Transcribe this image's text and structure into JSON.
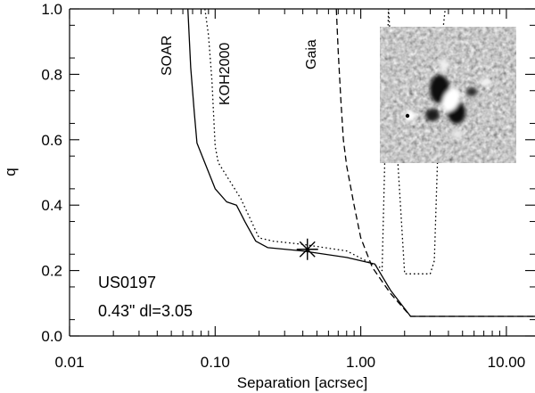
{
  "chart_data": {
    "type": "line",
    "xlabel": "Separation [acrsec]",
    "ylabel": "q",
    "xscale": "log",
    "xlim": [
      0.01,
      20
    ],
    "ylim": [
      0.0,
      1.0
    ],
    "x_ticks": [
      {
        "value": 0.01,
        "label": "0.01"
      },
      {
        "value": 0.1,
        "label": "0.10"
      },
      {
        "value": 1.0,
        "label": "1.00"
      },
      {
        "value": 10.0,
        "label": "10.00"
      }
    ],
    "y_ticks": [
      {
        "value": 0.0,
        "label": "0.0"
      },
      {
        "value": 0.2,
        "label": "0.2"
      },
      {
        "value": 0.4,
        "label": "0.4"
      },
      {
        "value": 0.6,
        "label": "0.6"
      },
      {
        "value": 0.8,
        "label": "0.8"
      },
      {
        "value": 1.0,
        "label": "1.0"
      }
    ],
    "series": [
      {
        "name": "SOAR",
        "style": "solid",
        "x": [
          0.065,
          0.068,
          0.072,
          0.075,
          0.1,
          0.12,
          0.14,
          0.16,
          0.19,
          0.23,
          0.4,
          0.8,
          1.25,
          1.6,
          2.2,
          3.0,
          20
        ],
        "y": [
          1.0,
          0.82,
          0.68,
          0.59,
          0.45,
          0.41,
          0.4,
          0.35,
          0.29,
          0.27,
          0.26,
          0.24,
          0.22,
          0.14,
          0.06,
          0.06,
          0.06
        ]
      },
      {
        "name": "KOH2000",
        "style": "dotted",
        "x": [
          0.085,
          0.09,
          0.095,
          0.1,
          0.105,
          0.15,
          0.2,
          0.25,
          0.4,
          0.8,
          1.2,
          1.35,
          1.4,
          1.55,
          2.0,
          3.0,
          3.2,
          3.4,
          3.6,
          3.8
        ],
        "y": [
          1.0,
          0.92,
          0.78,
          0.58,
          0.53,
          0.42,
          0.3,
          0.29,
          0.28,
          0.26,
          0.22,
          0.21,
          0.2,
          1.0,
          0.19,
          0.19,
          0.23,
          0.6,
          0.9,
          1.0
        ]
      },
      {
        "name": "Gaia",
        "style": "dashed",
        "x": [
          0.68,
          0.7,
          0.73,
          0.76,
          0.8,
          0.9,
          1.0,
          1.2,
          1.6,
          2.2,
          3.0,
          20
        ],
        "y": [
          1.0,
          0.87,
          0.72,
          0.6,
          0.52,
          0.4,
          0.3,
          0.21,
          0.13,
          0.06,
          0.06,
          0.06
        ]
      }
    ],
    "marker": {
      "symbol": "asterisk",
      "x": 0.43,
      "y": 0.265
    },
    "annotations": [
      "US0197",
      "0.43\" dl=3.05"
    ]
  }
}
